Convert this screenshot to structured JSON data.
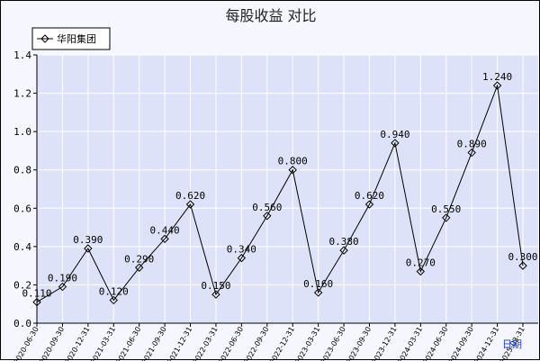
{
  "chart_data": {
    "type": "line",
    "title": "每股收益  对比",
    "xlabel": "日期",
    "ylabel": "",
    "ylim": [
      0,
      1.4
    ],
    "yticks": [
      "0.0",
      "0.2",
      "0.4",
      "0.6",
      "0.8",
      "1.0",
      "1.2",
      "1.4"
    ],
    "grid": true,
    "legend_position": "top-left",
    "colors": {
      "plot_bg": "#dde2f8",
      "grid": "#ffffff",
      "line": "#000000",
      "frame_bg": "#f5f6ff"
    },
    "categories": [
      "2020-06-30",
      "2020-09-30",
      "2020-12-31",
      "2021-03-31",
      "2021-06-30",
      "2021-09-30",
      "2021-12-31",
      "2022-03-31",
      "2022-06-30",
      "2022-09-30",
      "2022-12-31",
      "2023-03-31",
      "2023-06-30",
      "2023-09-30",
      "2023-12-31",
      "2024-03-31",
      "2024-06-30",
      "2024-09-30",
      "2024-12-31",
      "2025-03-31"
    ],
    "series": [
      {
        "name": "华阳集团",
        "marker": "diamond",
        "values": [
          0.11,
          0.19,
          0.39,
          0.12,
          0.29,
          0.44,
          0.62,
          0.15,
          0.34,
          0.56,
          0.8,
          0.16,
          0.38,
          0.62,
          0.94,
          0.27,
          0.55,
          0.89,
          1.24,
          0.3
        ],
        "labels": [
          "0.110",
          "0.190",
          "0.390",
          "0.120",
          "0.290",
          "0.440",
          "0.620",
          "0.150",
          "0.340",
          "0.560",
          "0.800",
          "0.160",
          "0.380",
          "0.620",
          "0.940",
          "0.270",
          "0.550",
          "0.890",
          "1.240",
          "0.300"
        ]
      }
    ]
  }
}
